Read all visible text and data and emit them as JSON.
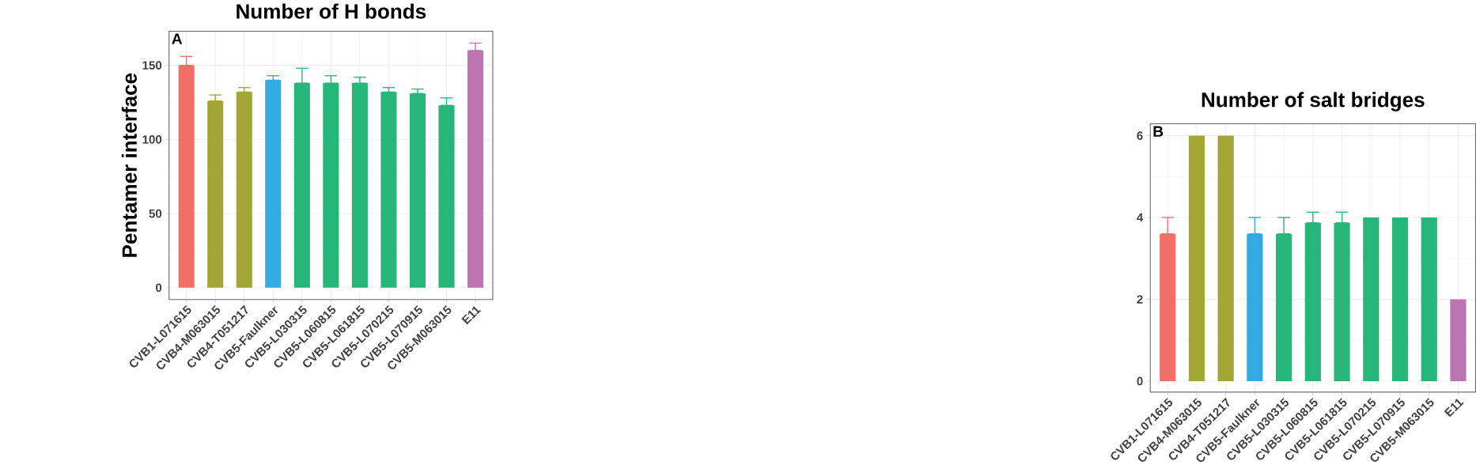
{
  "chart_data": [
    {
      "type": "bar",
      "title": "Number of H bonds",
      "ylabel": "Pentamer interface",
      "annotations": [
        "A"
      ],
      "categories": [
        "CVB1-L071615",
        "CVB4-M063015",
        "CVB4-T051217",
        "CVB5-Faulkner",
        "CVB5-L030315",
        "CVB5-L060815",
        "CVB5-L061815",
        "CVB5-L070215",
        "CVB5-L070915",
        "CVB5-M063015",
        "E11"
      ],
      "values": [
        150,
        126,
        132,
        140,
        138,
        138,
        138,
        132,
        131,
        123,
        160
      ],
      "errors": [
        [
          150,
          156
        ],
        [
          126,
          130
        ],
        [
          132,
          135
        ],
        [
          140,
          143
        ],
        [
          138,
          148
        ],
        [
          138,
          143
        ],
        [
          138,
          142
        ],
        [
          132,
          135
        ],
        [
          131,
          134
        ],
        [
          123,
          128
        ],
        [
          160,
          165
        ]
      ],
      "colors": [
        "#f07068",
        "#a3a535",
        "#a3a535",
        "#33aae0",
        "#27b67a",
        "#27b67a",
        "#27b67a",
        "#27b67a",
        "#27b67a",
        "#27b67a",
        "#bd74b2"
      ],
      "ylim": [
        -8,
        173
      ],
      "yticks": [
        0,
        50,
        100,
        150
      ],
      "grid": true
    },
    {
      "type": "bar",
      "title": "Number of salt bridges",
      "annotations": [
        "B"
      ],
      "categories": [
        "CVB1-L071615",
        "CVB4-M063015",
        "CVB4-T051217",
        "CVB5-Faulkner",
        "CVB5-L030315",
        "CVB5-L060815",
        "CVB5-L061815",
        "CVB5-L070215",
        "CVB5-L070915",
        "CVB5-M063015",
        "E11"
      ],
      "values": [
        3.6,
        6,
        6,
        3.6,
        3.6,
        3.87,
        3.87,
        4,
        4,
        4,
        2
      ],
      "errors": [
        [
          3.6,
          4
        ],
        null,
        null,
        [
          3.6,
          4
        ],
        [
          3.6,
          4
        ],
        [
          3.87,
          4.13
        ],
        [
          3.87,
          4.13
        ],
        null,
        null,
        null,
        null
      ],
      "colors": [
        "#f07068",
        "#a3a535",
        "#a3a535",
        "#33aae0",
        "#27b67a",
        "#27b67a",
        "#27b67a",
        "#27b67a",
        "#27b67a",
        "#27b67a",
        "#bd74b2"
      ],
      "ylim": [
        -0.27,
        6.29
      ],
      "yticks": [
        0,
        2,
        4,
        6
      ],
      "grid": true
    }
  ]
}
